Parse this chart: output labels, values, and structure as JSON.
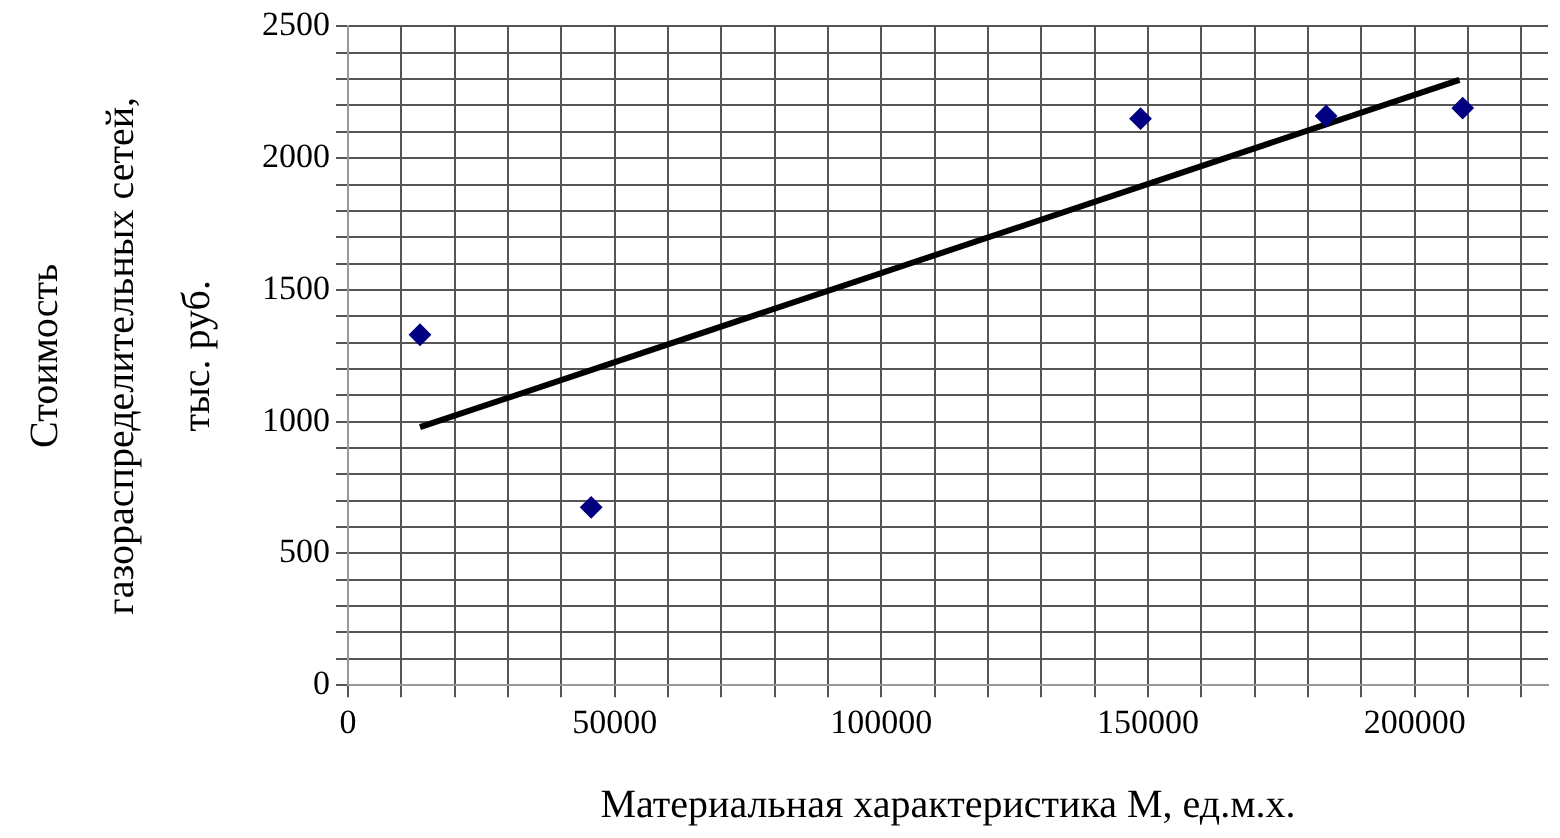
{
  "chart_data": {
    "type": "scatter",
    "xlabel": "Материальная характеристика М, ед.м.х.",
    "ylabel": "Стоимость газораспределительных сетей, тыс. руб.",
    "series": [
      {
        "color": "#000080",
        "marker": "diamond",
        "x": [
          13500,
          45600,
          148600,
          183400,
          209000
        ],
        "values": [
          1330,
          675,
          2150,
          2160,
          2190
        ]
      },
      {
        "type": "line",
        "color": "#000000",
        "marker": "none",
        "x": [
          13500,
          208400
        ],
        "values": [
          979,
          2297
        ]
      }
    ],
    "xlim": [
      0,
      225000
    ],
    "xticks": [
      0,
      {
        "value": 10000,
        "label": null
      },
      {
        "value": 20000,
        "label": null
      },
      {
        "value": 30000,
        "label": null
      },
      {
        "value": 40000,
        "label": null
      },
      50000,
      {
        "value": 60000,
        "label": null
      },
      {
        "value": 70000,
        "label": null
      },
      {
        "value": 80000,
        "label": null
      },
      {
        "value": 90000,
        "label": null
      },
      100000,
      {
        "value": 110000,
        "label": null
      },
      {
        "value": 120000,
        "label": null
      },
      {
        "value": 130000,
        "label": null
      },
      {
        "value": 140000,
        "label": null
      },
      150000,
      {
        "value": 160000,
        "label": null
      },
      {
        "value": 170000,
        "label": null
      },
      {
        "value": 180000,
        "label": null
      },
      {
        "value": 190000,
        "label": null
      },
      200000,
      {
        "value": 210000,
        "label": null
      },
      {
        "value": 220000,
        "label": null
      }
    ],
    "ylim": [
      0,
      2500
    ],
    "yticks": [
      0,
      {
        "value": 100,
        "label": null
      },
      {
        "value": 200,
        "label": null
      },
      {
        "value": 300,
        "label": null
      },
      {
        "value": 400,
        "label": null
      },
      500,
      {
        "value": 600,
        "label": null
      },
      {
        "value": 700,
        "label": null
      },
      {
        "value": 800,
        "label": null
      },
      {
        "value": 900,
        "label": null
      },
      1000,
      {
        "value": 1100,
        "label": null
      },
      {
        "value": 1200,
        "label": null
      },
      {
        "value": 1300,
        "label": null
      },
      {
        "value": 1400,
        "label": null
      },
      1500,
      {
        "value": 1600,
        "label": null
      },
      {
        "value": 1700,
        "label": null
      },
      {
        "value": 1800,
        "label": null
      },
      {
        "value": 1900,
        "label": null
      },
      2000,
      {
        "value": 2100,
        "label": null
      },
      {
        "value": 2200,
        "label": null
      },
      {
        "value": 2300,
        "label": null
      },
      {
        "value": 2400,
        "label": null
      },
      2500
    ],
    "grid": true,
    "legend": false
  }
}
